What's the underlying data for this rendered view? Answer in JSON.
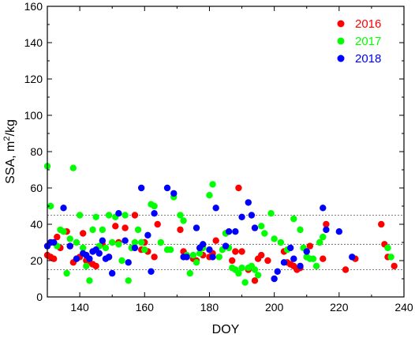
{
  "chart_data": {
    "type": "scatter",
    "xlabel": "DOY",
    "ylabel_main": "SSA, m",
    "ylabel_sup": "2",
    "ylabel_tail": "/kg",
    "xlim": [
      130,
      240
    ],
    "ylim": [
      0,
      160
    ],
    "xticks": [
      140,
      160,
      180,
      200,
      220,
      240
    ],
    "yticks": [
      0,
      20,
      40,
      60,
      80,
      100,
      120,
      140,
      160
    ],
    "reference_lines": [
      15,
      29,
      45
    ],
    "legend_position": "top-right",
    "series": [
      {
        "name": "2016",
        "color": "#ff0000",
        "points": [
          [
            130,
            23
          ],
          [
            131,
            22
          ],
          [
            132,
            21
          ],
          [
            133,
            33
          ],
          [
            134,
            27
          ],
          [
            136,
            36
          ],
          [
            137,
            28
          ],
          [
            138,
            19
          ],
          [
            139,
            21
          ],
          [
            140,
            22
          ],
          [
            141,
            35
          ],
          [
            142,
            20
          ],
          [
            143,
            19
          ],
          [
            144,
            18
          ],
          [
            145,
            17
          ],
          [
            147,
            29
          ],
          [
            149,
            22
          ],
          [
            151,
            39
          ],
          [
            152,
            30
          ],
          [
            154,
            38
          ],
          [
            156,
            27
          ],
          [
            157,
            45
          ],
          [
            159,
            26
          ],
          [
            160,
            30
          ],
          [
            161,
            25
          ],
          [
            163,
            22
          ],
          [
            164,
            40
          ],
          [
            171,
            37
          ],
          [
            172,
            25
          ],
          [
            175,
            21
          ],
          [
            176,
            20
          ],
          [
            178,
            23
          ],
          [
            180,
            22
          ],
          [
            181,
            24
          ],
          [
            182,
            31
          ],
          [
            185,
            35
          ],
          [
            187,
            20
          ],
          [
            188,
            25
          ],
          [
            189,
            60
          ],
          [
            190,
            25
          ],
          [
            192,
            15
          ],
          [
            194,
            9
          ],
          [
            195,
            21
          ],
          [
            196,
            23
          ],
          [
            198,
            20
          ],
          [
            203,
            25
          ],
          [
            204,
            19
          ],
          [
            205,
            18
          ],
          [
            206,
            17
          ],
          [
            207,
            15
          ],
          [
            208,
            16
          ],
          [
            210,
            22
          ],
          [
            211,
            28
          ],
          [
            215,
            21
          ],
          [
            216,
            40
          ],
          [
            222,
            15
          ],
          [
            225,
            21
          ],
          [
            233,
            40
          ],
          [
            234,
            29
          ],
          [
            235,
            22
          ],
          [
            237,
            17
          ]
        ]
      },
      {
        "name": "2017",
        "color": "#00ff00",
        "points": [
          [
            130,
            72
          ],
          [
            131,
            50
          ],
          [
            133,
            28
          ],
          [
            134,
            37
          ],
          [
            135,
            36
          ],
          [
            136,
            13
          ],
          [
            137,
            32
          ],
          [
            138,
            71
          ],
          [
            139,
            30
          ],
          [
            140,
            45
          ],
          [
            141,
            27
          ],
          [
            142,
            17
          ],
          [
            143,
            9
          ],
          [
            144,
            37
          ],
          [
            145,
            44
          ],
          [
            146,
            28
          ],
          [
            147,
            37
          ],
          [
            148,
            27
          ],
          [
            149,
            45
          ],
          [
            150,
            30
          ],
          [
            151,
            44
          ],
          [
            152,
            29
          ],
          [
            153,
            20
          ],
          [
            154,
            45
          ],
          [
            155,
            9
          ],
          [
            156,
            27
          ],
          [
            157,
            30
          ],
          [
            158,
            37
          ],
          [
            159,
            30
          ],
          [
            160,
            26
          ],
          [
            162,
            51
          ],
          [
            163,
            50
          ],
          [
            165,
            30
          ],
          [
            167,
            26
          ],
          [
            168,
            26
          ],
          [
            169,
            55
          ],
          [
            171,
            45
          ],
          [
            172,
            42
          ],
          [
            173,
            23
          ],
          [
            174,
            13
          ],
          [
            175,
            23
          ],
          [
            176,
            19
          ],
          [
            177,
            24
          ],
          [
            178,
            27
          ],
          [
            180,
            56
          ],
          [
            181,
            62
          ],
          [
            183,
            22
          ],
          [
            184,
            26
          ],
          [
            185,
            35
          ],
          [
            186,
            27
          ],
          [
            187,
            16
          ],
          [
            188,
            15
          ],
          [
            189,
            13
          ],
          [
            190,
            16
          ],
          [
            191,
            8
          ],
          [
            192,
            16
          ],
          [
            193,
            17
          ],
          [
            194,
            15
          ],
          [
            195,
            12
          ],
          [
            196,
            39
          ],
          [
            197,
            35
          ],
          [
            199,
            46
          ],
          [
            200,
            32
          ],
          [
            202,
            30
          ],
          [
            204,
            26
          ],
          [
            206,
            43
          ],
          [
            208,
            37
          ],
          [
            209,
            27
          ],
          [
            210,
            22
          ],
          [
            211,
            21
          ],
          [
            212,
            21
          ],
          [
            213,
            17
          ],
          [
            214,
            30
          ],
          [
            215,
            33
          ],
          [
            235,
            27
          ],
          [
            236,
            22
          ]
        ]
      },
      {
        "name": "2018",
        "color": "#0000ff",
        "points": [
          [
            130,
            28
          ],
          [
            131,
            30
          ],
          [
            132,
            30
          ],
          [
            135,
            49
          ],
          [
            137,
            28
          ],
          [
            139,
            21
          ],
          [
            141,
            24
          ],
          [
            142,
            23
          ],
          [
            143,
            21
          ],
          [
            144,
            25
          ],
          [
            145,
            26
          ],
          [
            146,
            24
          ],
          [
            147,
            31
          ],
          [
            148,
            21
          ],
          [
            149,
            22
          ],
          [
            150,
            13
          ],
          [
            152,
            46
          ],
          [
            154,
            31
          ],
          [
            155,
            19
          ],
          [
            157,
            27
          ],
          [
            159,
            60
          ],
          [
            161,
            34
          ],
          [
            162,
            14
          ],
          [
            163,
            46
          ],
          [
            167,
            60
          ],
          [
            169,
            57
          ],
          [
            172,
            22
          ],
          [
            173,
            22
          ],
          [
            176,
            38
          ],
          [
            177,
            27
          ],
          [
            178,
            29
          ],
          [
            180,
            26
          ],
          [
            181,
            22
          ],
          [
            182,
            49
          ],
          [
            185,
            28
          ],
          [
            186,
            36
          ],
          [
            188,
            36
          ],
          [
            190,
            44
          ],
          [
            192,
            52
          ],
          [
            193,
            45
          ],
          [
            194,
            38
          ],
          [
            200,
            10
          ],
          [
            201,
            14
          ],
          [
            203,
            19
          ],
          [
            205,
            27
          ],
          [
            206,
            21
          ],
          [
            208,
            17
          ],
          [
            210,
            25
          ],
          [
            215,
            49
          ],
          [
            216,
            37
          ],
          [
            220,
            36
          ],
          [
            224,
            22
          ]
        ]
      }
    ]
  }
}
